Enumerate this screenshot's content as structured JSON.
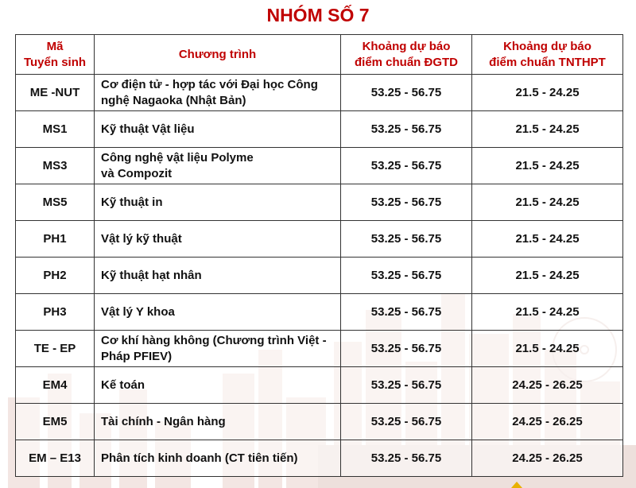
{
  "title": "NHÓM SỐ 7",
  "table": {
    "headers": {
      "code": [
        "Mã",
        "Tuyển sinh"
      ],
      "program": "Chương trình",
      "dgtd": [
        "Khoảng dự báo",
        "điểm chuẩn ĐGTD"
      ],
      "thpt": [
        "Khoảng dự báo",
        "điểm chuẩn TNTHPT"
      ]
    },
    "rows": [
      {
        "code": "ME -NUT",
        "program": [
          "Cơ điện tử - hợp tác với Đại học Công",
          "nghệ Nagaoka (Nhật Bản)"
        ],
        "dgtd": "53.25 - 56.75",
        "thpt": "21.5 - 24.25"
      },
      {
        "code": "MS1",
        "program": [
          "Kỹ thuật Vật liệu"
        ],
        "dgtd": "53.25 - 56.75",
        "thpt": "21.5 - 24.25"
      },
      {
        "code": "MS3",
        "program": [
          "Công nghệ vật liệu Polyme",
          "và Compozit"
        ],
        "dgtd": "53.25 - 56.75",
        "thpt": "21.5 - 24.25"
      },
      {
        "code": "MS5",
        "program": [
          "Kỹ thuật in"
        ],
        "dgtd": "53.25 - 56.75",
        "thpt": "21.5 - 24.25"
      },
      {
        "code": "PH1",
        "program": [
          "Vật lý kỹ thuật"
        ],
        "dgtd": "53.25 - 56.75",
        "thpt": "21.5 - 24.25"
      },
      {
        "code": "PH2",
        "program": [
          "Kỹ thuật hạt nhân"
        ],
        "dgtd": "53.25 - 56.75",
        "thpt": "21.5 - 24.25"
      },
      {
        "code": "PH3",
        "program": [
          "Vật lý Y khoa"
        ],
        "dgtd": "53.25 - 56.75",
        "thpt": "21.5 - 24.25"
      },
      {
        "code": "TE - EP",
        "program": [
          "Cơ khí hàng không (Chương trình Việt -",
          "Pháp PFIEV)"
        ],
        "dgtd": "53.25 - 56.75",
        "thpt": "21.5 - 24.25"
      },
      {
        "code": "EM4",
        "program": [
          "Kế toán"
        ],
        "dgtd": "53.25 - 56.75",
        "thpt": "24.25 - 26.25"
      },
      {
        "code": "EM5",
        "program": [
          "Tài chính - Ngân hàng"
        ],
        "dgtd": "53.25 - 56.75",
        "thpt": "24.25 - 26.25"
      },
      {
        "code": "EM – E13",
        "program": [
          "Phân tích kinh doanh (CT tiên tiến)"
        ],
        "dgtd": "53.25 - 56.75",
        "thpt": "24.25 - 26.25"
      }
    ]
  },
  "colors": {
    "title": "#c00000",
    "header_text": "#c00000",
    "background_skyline": "#efe3e0",
    "grid_lines": "#333333"
  },
  "icons": {
    "background": "city-skyline-icon",
    "logo": "logo-icon"
  }
}
